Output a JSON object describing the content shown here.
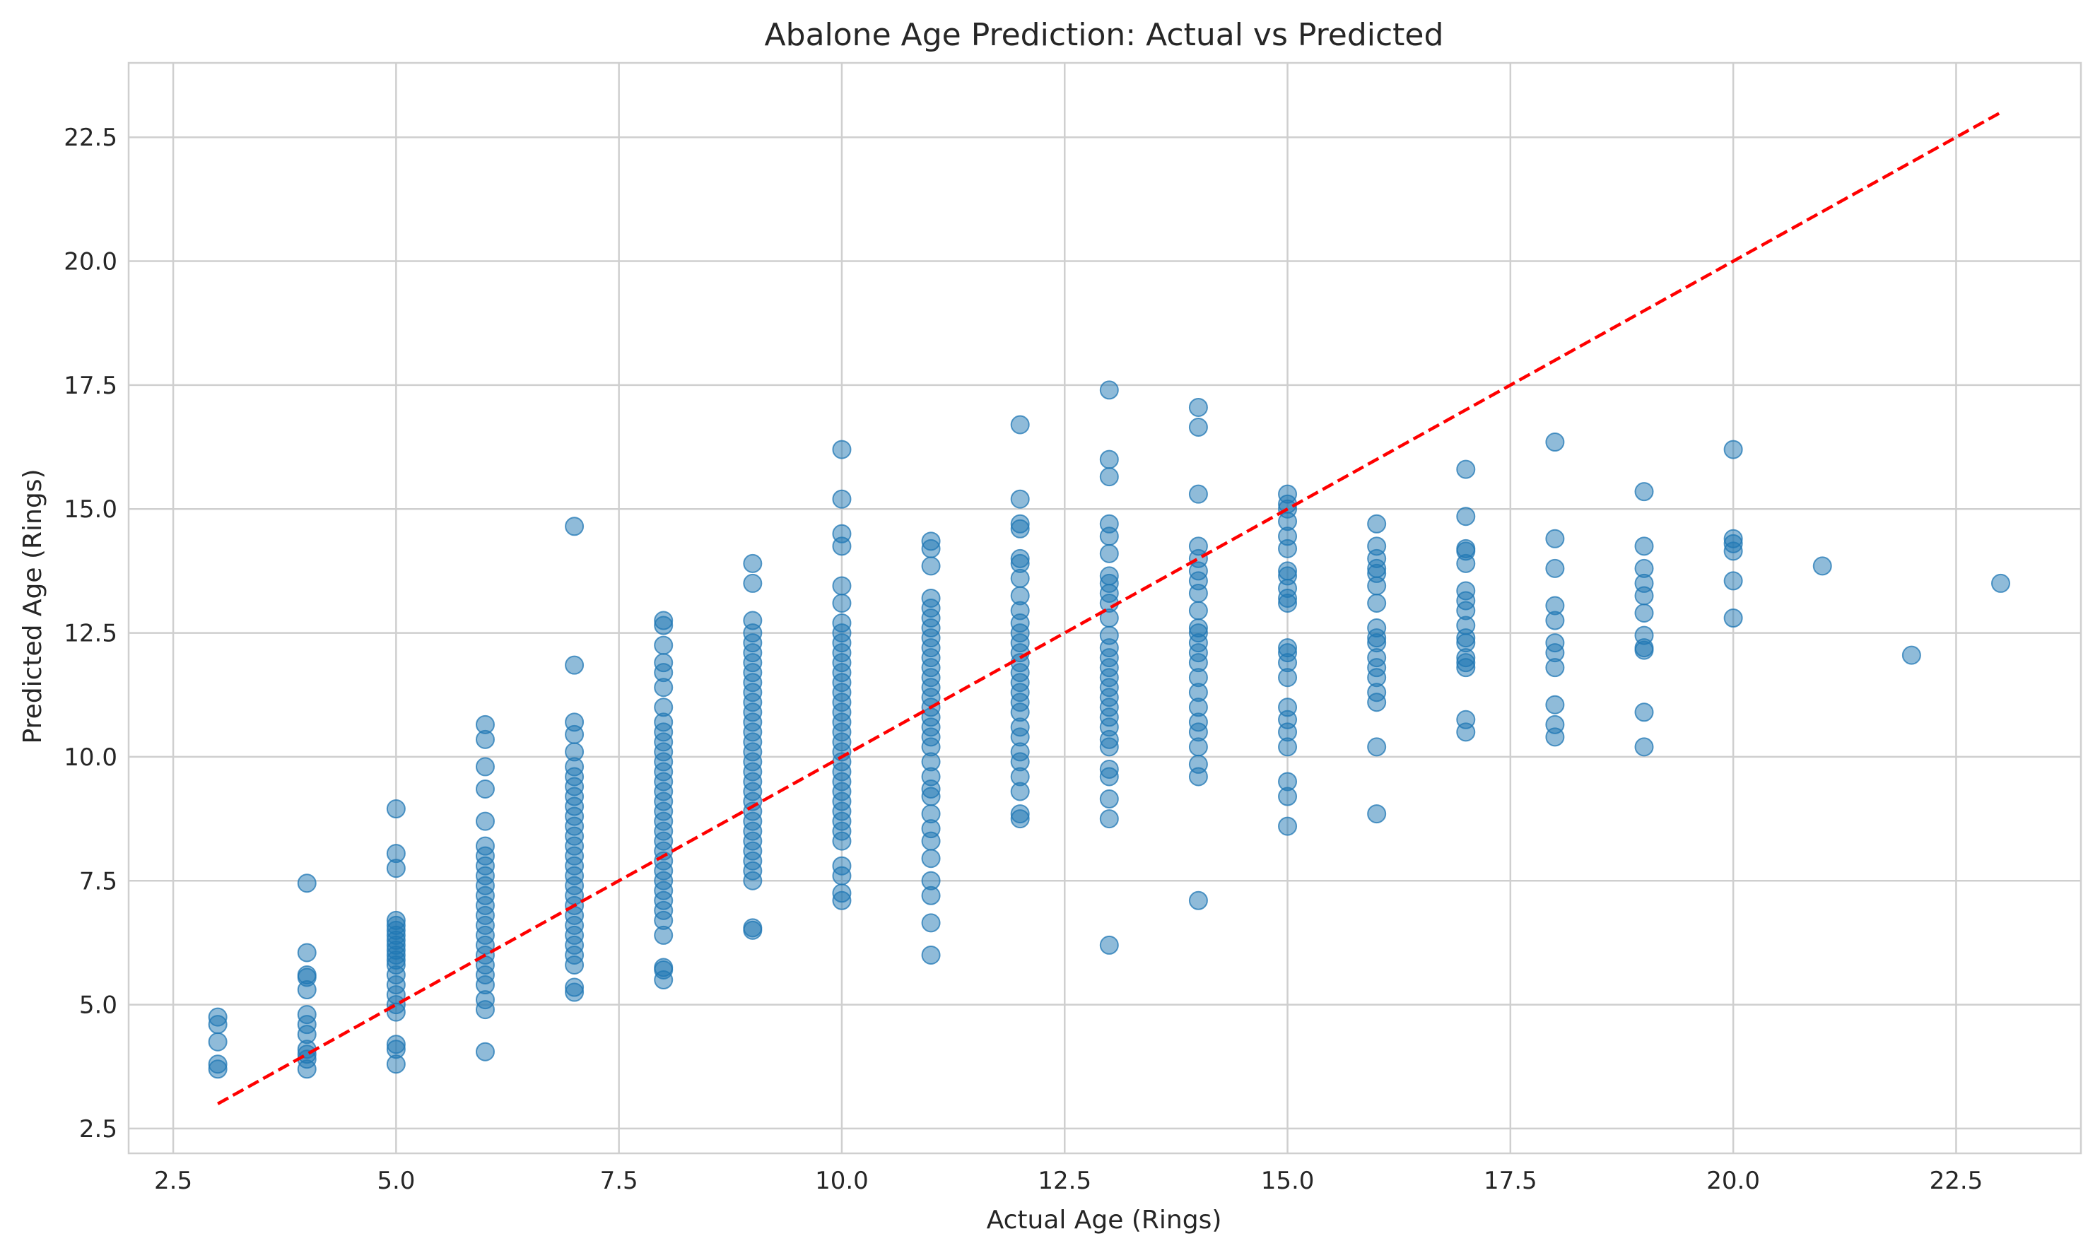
{
  "chart_data": {
    "type": "scatter",
    "title": "Abalone Age Prediction: Actual vs Predicted",
    "xlabel": "Actual Age (Rings)",
    "ylabel": "Predicted Age (Rings)",
    "xlim": [
      2.0,
      23.9
    ],
    "ylim": [
      2.0,
      24.0
    ],
    "xticks": [
      2.5,
      5.0,
      7.5,
      10.0,
      12.5,
      15.0,
      17.5,
      20.0,
      22.5
    ],
    "yticks": [
      2.5,
      5.0,
      7.5,
      10.0,
      12.5,
      15.0,
      17.5,
      20.0,
      22.5
    ],
    "grid": true,
    "legend": "none",
    "colors": {
      "points": "#1f77b4",
      "reference_line": "#ff0000",
      "grid": "#cfcfcf"
    },
    "reference_line": {
      "x": [
        3,
        23
      ],
      "y": [
        3,
        23
      ],
      "style": "dashed"
    },
    "series": [
      {
        "points": [
          {
            "actual": 3,
            "predicted_values": [
              3.7,
              3.8,
              4.25,
              4.6,
              4.75
            ]
          },
          {
            "actual": 4,
            "predicted_values": [
              3.7,
              3.9,
              4.0,
              4.1,
              4.4,
              4.6,
              4.8,
              5.3,
              5.55,
              5.6,
              6.05,
              7.45
            ]
          },
          {
            "actual": 5,
            "predicted_values": [
              3.8,
              4.1,
              4.2,
              4.85,
              5.0,
              5.2,
              5.4,
              5.6,
              5.8,
              5.9,
              6.0,
              6.1,
              6.2,
              6.3,
              6.4,
              6.5,
              6.6,
              6.7,
              7.75,
              8.05,
              8.95
            ]
          },
          {
            "actual": 6,
            "predicted_values": [
              4.05,
              4.9,
              5.1,
              5.4,
              5.6,
              5.8,
              6.0,
              6.2,
              6.4,
              6.6,
              6.8,
              7.0,
              7.2,
              7.4,
              7.6,
              7.8,
              8.0,
              8.2,
              8.7,
              9.35,
              9.8,
              10.35,
              10.65
            ]
          },
          {
            "actual": 7,
            "predicted_values": [
              5.25,
              5.35,
              5.8,
              6.0,
              6.2,
              6.4,
              6.6,
              6.8,
              7.0,
              7.2,
              7.4,
              7.6,
              7.8,
              8.0,
              8.2,
              8.4,
              8.6,
              8.8,
              9.0,
              9.2,
              9.4,
              9.6,
              9.8,
              10.1,
              10.45,
              10.7,
              11.85,
              14.65
            ]
          },
          {
            "actual": 8,
            "predicted_values": [
              5.5,
              5.7,
              5.75,
              6.4,
              6.7,
              6.9,
              7.1,
              7.3,
              7.5,
              7.7,
              7.9,
              8.1,
              8.3,
              8.5,
              8.7,
              8.9,
              9.1,
              9.3,
              9.5,
              9.7,
              9.9,
              10.1,
              10.3,
              10.5,
              10.7,
              11.0,
              11.4,
              11.7,
              11.9,
              12.25,
              12.65,
              12.75
            ]
          },
          {
            "actual": 9,
            "predicted_values": [
              6.5,
              6.55,
              7.5,
              7.7,
              7.9,
              8.1,
              8.3,
              8.5,
              8.7,
              8.9,
              9.1,
              9.3,
              9.5,
              9.7,
              9.9,
              10.1,
              10.3,
              10.5,
              10.7,
              10.9,
              11.1,
              11.3,
              11.5,
              11.7,
              11.9,
              12.1,
              12.3,
              12.5,
              12.75,
              13.5,
              13.9
            ]
          },
          {
            "actual": 10,
            "predicted_values": [
              7.1,
              7.25,
              7.6,
              7.8,
              8.3,
              8.5,
              8.7,
              8.9,
              9.1,
              9.3,
              9.5,
              9.7,
              9.9,
              10.1,
              10.3,
              10.5,
              10.7,
              10.9,
              11.1,
              11.3,
              11.5,
              11.7,
              11.9,
              12.1,
              12.3,
              12.5,
              12.7,
              13.1,
              13.45,
              14.25,
              14.5,
              15.2,
              16.2
            ]
          },
          {
            "actual": 11,
            "predicted_values": [
              6.0,
              6.65,
              7.2,
              7.5,
              7.95,
              8.3,
              8.55,
              8.85,
              9.2,
              9.35,
              9.6,
              9.9,
              10.2,
              10.4,
              10.6,
              10.8,
              11.0,
              11.2,
              11.4,
              11.6,
              11.8,
              12.0,
              12.2,
              12.4,
              12.6,
              12.8,
              13.0,
              13.2,
              13.85,
              14.2,
              14.35
            ]
          },
          {
            "actual": 12,
            "predicted_values": [
              8.75,
              8.85,
              9.3,
              9.6,
              9.9,
              10.1,
              10.4,
              10.6,
              10.9,
              11.1,
              11.3,
              11.5,
              11.7,
              11.9,
              12.1,
              12.3,
              12.5,
              12.7,
              12.95,
              13.25,
              13.6,
              13.9,
              14.0,
              14.6,
              14.7,
              15.2,
              16.7
            ]
          },
          {
            "actual": 13,
            "predicted_values": [
              6.2,
              8.75,
              9.15,
              9.6,
              9.75,
              10.2,
              10.35,
              10.6,
              10.8,
              11.0,
              11.2,
              11.4,
              11.6,
              11.8,
              12.0,
              12.2,
              12.45,
              12.8,
              13.1,
              13.3,
              13.5,
              13.65,
              14.1,
              14.45,
              14.7,
              15.65,
              16.0,
              17.4
            ]
          },
          {
            "actual": 14,
            "predicted_values": [
              7.1,
              9.6,
              9.85,
              10.2,
              10.5,
              10.7,
              11.0,
              11.3,
              11.6,
              11.9,
              12.1,
              12.3,
              12.5,
              12.6,
              12.95,
              13.3,
              13.55,
              13.75,
              14.0,
              14.25,
              15.3,
              16.65,
              17.05
            ]
          },
          {
            "actual": 15,
            "predicted_values": [
              8.6,
              9.2,
              9.5,
              10.2,
              10.5,
              10.75,
              11.0,
              11.6,
              11.9,
              12.1,
              12.2,
              13.1,
              13.2,
              13.4,
              13.65,
              13.75,
              14.2,
              14.45,
              14.75,
              15.0,
              15.1,
              15.3
            ]
          },
          {
            "actual": 16,
            "predicted_values": [
              8.85,
              10.2,
              11.1,
              11.3,
              11.6,
              11.8,
              12.0,
              12.3,
              12.4,
              12.6,
              13.1,
              13.45,
              13.7,
              13.8,
              14.0,
              14.25,
              14.7
            ]
          },
          {
            "actual": 17,
            "predicted_values": [
              10.5,
              10.75,
              11.8,
              11.9,
              12.0,
              12.3,
              12.4,
              12.65,
              12.95,
              13.15,
              13.35,
              13.9,
              14.15,
              14.2,
              14.85,
              15.8
            ]
          },
          {
            "actual": 18,
            "predicted_values": [
              10.4,
              10.65,
              11.05,
              11.8,
              12.1,
              12.3,
              12.75,
              13.05,
              13.8,
              14.4,
              16.35
            ]
          },
          {
            "actual": 19,
            "predicted_values": [
              10.2,
              10.9,
              12.15,
              12.2,
              12.45,
              12.9,
              13.25,
              13.5,
              13.8,
              14.25,
              15.35
            ]
          },
          {
            "actual": 20,
            "predicted_values": [
              12.8,
              13.55,
              14.15,
              14.3,
              14.4,
              16.2
            ]
          },
          {
            "actual": 21,
            "predicted_values": [
              13.85
            ]
          },
          {
            "actual": 22,
            "predicted_values": [
              12.05
            ]
          },
          {
            "actual": 23,
            "predicted_values": [
              13.5
            ]
          }
        ]
      }
    ]
  }
}
